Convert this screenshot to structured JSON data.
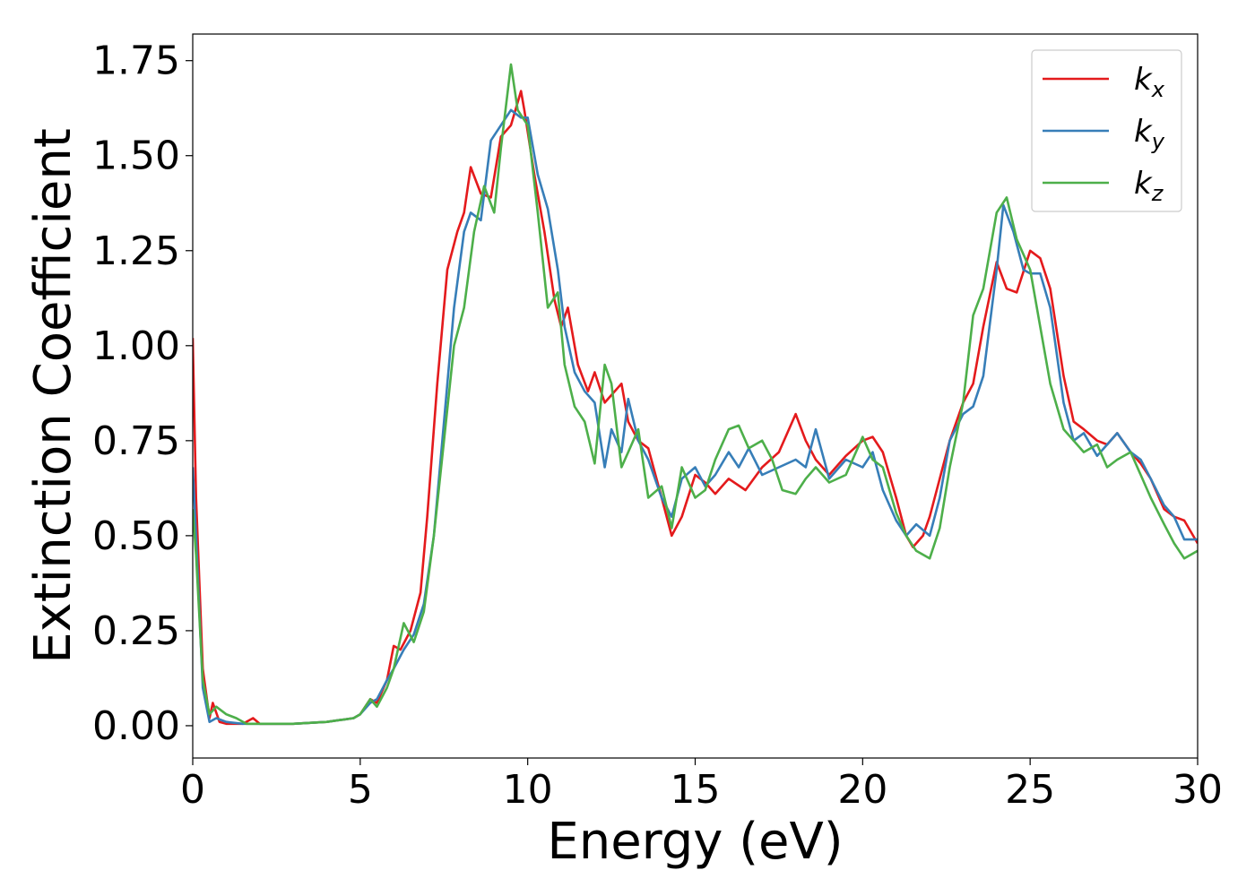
{
  "chart_data": {
    "type": "line",
    "xlabel": "Energy (eV)",
    "ylabel": "Extinction Coefficient",
    "xlim": [
      0,
      30
    ],
    "ylim": [
      -0.085,
      1.82
    ],
    "xticks": [
      0,
      5,
      10,
      15,
      20,
      25,
      30
    ],
    "xtick_labels": [
      "0",
      "5",
      "10",
      "15",
      "20",
      "25",
      "30"
    ],
    "yticks": [
      0.0,
      0.25,
      0.5,
      0.75,
      1.0,
      1.25,
      1.5,
      1.75
    ],
    "ytick_labels": [
      "0.00",
      "0.25",
      "0.50",
      "0.75",
      "1.00",
      "1.25",
      "1.50",
      "1.75"
    ],
    "grid": false,
    "legend_position": "top-right",
    "series": [
      {
        "name": "k",
        "subscript": "x",
        "color": "#e41a1c",
        "x": [
          0,
          0.1,
          0.3,
          0.5,
          0.6,
          0.8,
          1.0,
          1.5,
          1.8,
          2.0,
          3.0,
          4.0,
          4.8,
          5.0,
          5.3,
          5.5,
          5.8,
          6.0,
          6.2,
          6.5,
          6.8,
          7.0,
          7.3,
          7.6,
          7.9,
          8.1,
          8.3,
          8.6,
          8.9,
          9.2,
          9.5,
          9.8,
          9.9,
          10.2,
          10.5,
          10.8,
          11.0,
          11.2,
          11.5,
          11.8,
          12.0,
          12.3,
          12.5,
          12.8,
          13.0,
          13.3,
          13.6,
          14.0,
          14.3,
          14.6,
          15.0,
          15.3,
          15.6,
          16.0,
          16.5,
          17.0,
          17.5,
          18.0,
          18.3,
          18.6,
          19.0,
          19.5,
          20.0,
          20.3,
          20.6,
          21.0,
          21.3,
          21.5,
          21.8,
          22.0,
          22.3,
          22.6,
          23.0,
          23.3,
          23.6,
          24.0,
          24.3,
          24.6,
          25.0,
          25.3,
          25.6,
          26.0,
          26.3,
          26.6,
          27.0,
          27.3,
          27.6,
          28.0,
          28.3,
          28.6,
          29.0,
          29.3,
          29.6,
          30.0
        ],
        "y": [
          1.02,
          0.6,
          0.15,
          0.02,
          0.06,
          0.01,
          0.005,
          0.005,
          0.02,
          0.005,
          0.005,
          0.01,
          0.02,
          0.03,
          0.07,
          0.06,
          0.12,
          0.21,
          0.2,
          0.25,
          0.35,
          0.55,
          0.9,
          1.2,
          1.3,
          1.35,
          1.47,
          1.4,
          1.39,
          1.55,
          1.58,
          1.67,
          1.62,
          1.45,
          1.3,
          1.12,
          1.05,
          1.1,
          0.95,
          0.88,
          0.93,
          0.85,
          0.87,
          0.9,
          0.8,
          0.75,
          0.73,
          0.6,
          0.5,
          0.55,
          0.66,
          0.64,
          0.61,
          0.65,
          0.62,
          0.68,
          0.72,
          0.82,
          0.75,
          0.7,
          0.66,
          0.71,
          0.75,
          0.76,
          0.72,
          0.6,
          0.5,
          0.47,
          0.5,
          0.55,
          0.65,
          0.75,
          0.85,
          0.9,
          1.05,
          1.22,
          1.15,
          1.14,
          1.25,
          1.23,
          1.15,
          0.92,
          0.8,
          0.78,
          0.75,
          0.74,
          0.77,
          0.72,
          0.69,
          0.65,
          0.57,
          0.55,
          0.54,
          0.48
        ]
      },
      {
        "name": "k",
        "subscript": "y",
        "color": "#377eb8",
        "x": [
          0,
          0.1,
          0.3,
          0.5,
          0.7,
          1.0,
          1.5,
          2.0,
          3.0,
          4.0,
          4.8,
          5.0,
          5.3,
          5.5,
          5.8,
          6.0,
          6.3,
          6.6,
          6.9,
          7.2,
          7.5,
          7.8,
          8.1,
          8.3,
          8.6,
          8.9,
          9.2,
          9.5,
          9.8,
          10.0,
          10.3,
          10.6,
          10.9,
          11.1,
          11.4,
          11.7,
          12.0,
          12.3,
          12.5,
          12.8,
          13.0,
          13.3,
          13.6,
          14.0,
          14.3,
          14.6,
          15.0,
          15.3,
          15.6,
          16.0,
          16.3,
          16.6,
          17.0,
          17.5,
          18.0,
          18.3,
          18.6,
          19.0,
          19.5,
          20.0,
          20.3,
          20.6,
          21.0,
          21.3,
          21.6,
          22.0,
          22.3,
          22.6,
          23.0,
          23.3,
          23.6,
          24.0,
          24.2,
          24.5,
          24.8,
          25.0,
          25.3,
          25.6,
          26.0,
          26.3,
          26.6,
          27.0,
          27.3,
          27.6,
          28.0,
          28.3,
          28.6,
          29.0,
          29.3,
          29.6,
          30.0
        ],
        "y": [
          0.68,
          0.5,
          0.1,
          0.01,
          0.02,
          0.01,
          0.005,
          0.005,
          0.005,
          0.01,
          0.02,
          0.03,
          0.06,
          0.07,
          0.12,
          0.15,
          0.2,
          0.24,
          0.32,
          0.5,
          0.8,
          1.1,
          1.3,
          1.35,
          1.33,
          1.54,
          1.58,
          1.62,
          1.6,
          1.6,
          1.45,
          1.36,
          1.2,
          1.05,
          0.93,
          0.88,
          0.85,
          0.68,
          0.78,
          0.72,
          0.86,
          0.75,
          0.7,
          0.6,
          0.55,
          0.65,
          0.68,
          0.63,
          0.66,
          0.72,
          0.68,
          0.73,
          0.66,
          0.68,
          0.7,
          0.68,
          0.78,
          0.65,
          0.7,
          0.68,
          0.72,
          0.62,
          0.54,
          0.5,
          0.53,
          0.5,
          0.6,
          0.75,
          0.82,
          0.84,
          0.92,
          1.2,
          1.37,
          1.3,
          1.2,
          1.19,
          1.19,
          1.1,
          0.85,
          0.75,
          0.77,
          0.71,
          0.74,
          0.77,
          0.72,
          0.7,
          0.65,
          0.58,
          0.55,
          0.49,
          0.49
        ]
      },
      {
        "name": "k",
        "subscript": "z",
        "color": "#4daf4a",
        "x": [
          0,
          0.1,
          0.3,
          0.5,
          0.7,
          1.0,
          1.3,
          1.6,
          2.0,
          3.0,
          4.0,
          4.8,
          5.0,
          5.3,
          5.5,
          5.8,
          6.0,
          6.3,
          6.6,
          6.9,
          7.2,
          7.5,
          7.8,
          8.1,
          8.4,
          8.7,
          9.0,
          9.2,
          9.5,
          9.7,
          10.0,
          10.3,
          10.6,
          10.9,
          11.1,
          11.4,
          11.7,
          12.0,
          12.3,
          12.5,
          12.8,
          13.0,
          13.3,
          13.6,
          14.0,
          14.3,
          14.6,
          15.0,
          15.3,
          15.6,
          16.0,
          16.3,
          16.6,
          17.0,
          17.3,
          17.6,
          18.0,
          18.3,
          18.6,
          19.0,
          19.5,
          20.0,
          20.3,
          20.6,
          21.0,
          21.3,
          21.6,
          22.0,
          22.3,
          22.6,
          23.0,
          23.3,
          23.6,
          24.0,
          24.3,
          24.6,
          25.0,
          25.3,
          25.6,
          26.0,
          26.3,
          26.6,
          27.0,
          27.3,
          27.6,
          28.0,
          28.3,
          28.6,
          29.0,
          29.3,
          29.6,
          30.0
        ],
        "y": [
          0.57,
          0.45,
          0.12,
          0.03,
          0.05,
          0.03,
          0.02,
          0.005,
          0.005,
          0.005,
          0.01,
          0.02,
          0.03,
          0.07,
          0.05,
          0.1,
          0.15,
          0.27,
          0.22,
          0.3,
          0.5,
          0.75,
          1.0,
          1.1,
          1.3,
          1.42,
          1.35,
          1.52,
          1.74,
          1.62,
          1.58,
          1.35,
          1.1,
          1.14,
          0.95,
          0.84,
          0.8,
          0.69,
          0.95,
          0.9,
          0.68,
          0.72,
          0.78,
          0.6,
          0.63,
          0.52,
          0.68,
          0.6,
          0.62,
          0.7,
          0.78,
          0.79,
          0.73,
          0.75,
          0.7,
          0.62,
          0.61,
          0.65,
          0.68,
          0.64,
          0.66,
          0.76,
          0.7,
          0.68,
          0.56,
          0.5,
          0.46,
          0.44,
          0.52,
          0.68,
          0.85,
          1.08,
          1.15,
          1.35,
          1.39,
          1.28,
          1.2,
          1.05,
          0.9,
          0.78,
          0.75,
          0.72,
          0.74,
          0.68,
          0.7,
          0.72,
          0.66,
          0.6,
          0.53,
          0.48,
          0.44,
          0.46
        ]
      }
    ]
  }
}
